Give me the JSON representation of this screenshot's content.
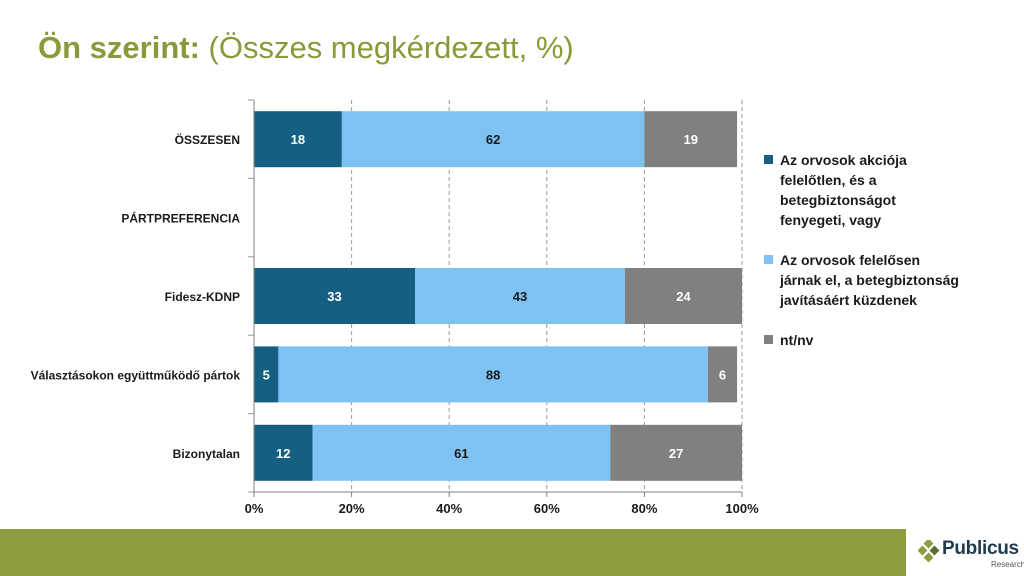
{
  "header": {
    "title_bold": "Ön szerint:",
    "title_rest": " (Összes megkérdezett, %)"
  },
  "chart_data": {
    "type": "bar",
    "orientation": "horizontal",
    "stacked": true,
    "categories": [
      "ÖSSZESEN",
      "PÁRTPREFERENCIA",
      "Fidesz-KDNP",
      "Választásokon együttműködő pártok",
      "Bizonytalan"
    ],
    "series": [
      {
        "name": "Az orvosok akciója felelőtlen, és a betegbiztonságot fenyegeti, vagy",
        "color": "#145f82",
        "label_color": "#ffffff",
        "values": [
          18,
          null,
          33,
          5,
          12
        ]
      },
      {
        "name": "Az orvosok felelősen járnak el, a betegbiztonság javításáért küzdenek",
        "color": "#7dc2f3",
        "label_color": "#1a1a1a",
        "values": [
          62,
          null,
          43,
          88,
          61
        ]
      },
      {
        "name": "nt/nv",
        "color": "#808080",
        "label_color": "#ffffff",
        "values": [
          19,
          null,
          24,
          6,
          27
        ]
      }
    ],
    "xlim": [
      0,
      100
    ],
    "xticks": [
      "0%",
      "20%",
      "40%",
      "60%",
      "80%",
      "100%"
    ],
    "grid": true,
    "legend_position": "right"
  },
  "legend": {
    "items": [
      {
        "label": "Az orvosok akciója felelőtlen, és a betegbiztonságot fenyegeti, vagy",
        "color": "#145f82"
      },
      {
        "label": "Az orvosok felelősen járnak el, a betegbiztonság javításáért küzdenek",
        "color": "#7dc2f3"
      },
      {
        "label": "nt/nv",
        "color": "#808080"
      }
    ]
  },
  "footer": {
    "logo_text": "Publicus",
    "logo_sub": "Research"
  }
}
